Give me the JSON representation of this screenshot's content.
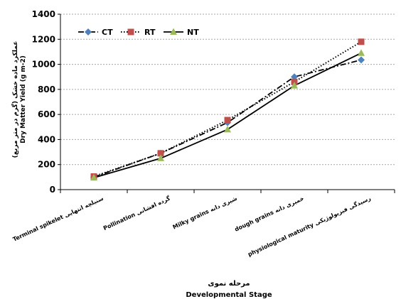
{
  "chart_data": {
    "type": "line",
    "categories": [
      "Terminal spikelet سنبلچه انتهایی",
      "Pollination گرده افشانی",
      "Milky grains شیری دانه",
      "dough grains خمیری دانه",
      "physiological maturity رسیدگی فیزیولوژیکی"
    ],
    "series": [
      {
        "name": "CT",
        "values": [
          100,
          290,
          535,
          900,
          1035
        ],
        "color": "#4f81bd",
        "marker": "diamond",
        "dash": "dash-dot"
      },
      {
        "name": "RT",
        "values": [
          105,
          290,
          555,
          860,
          1180
        ],
        "color": "#c0504d",
        "marker": "square",
        "dash": "dotted"
      },
      {
        "name": "NT",
        "values": [
          95,
          250,
          480,
          830,
          1090
        ],
        "color": "#9bbb59",
        "marker": "triangle",
        "dash": "solid"
      }
    ],
    "ylim": [
      0,
      1400
    ],
    "yticks": [
      0,
      200,
      400,
      600,
      800,
      1000,
      1200,
      1400
    ],
    "ylabel_fa": "عملکرد ماده خشک (گرم در متر مربع)",
    "ylabel_en": "Dry Matter Yield (g m-2)",
    "xlabel_fa": "مرحله نموی",
    "xlabel_en": "Developmental Stage",
    "grid": true,
    "legend_position": "top-left"
  }
}
